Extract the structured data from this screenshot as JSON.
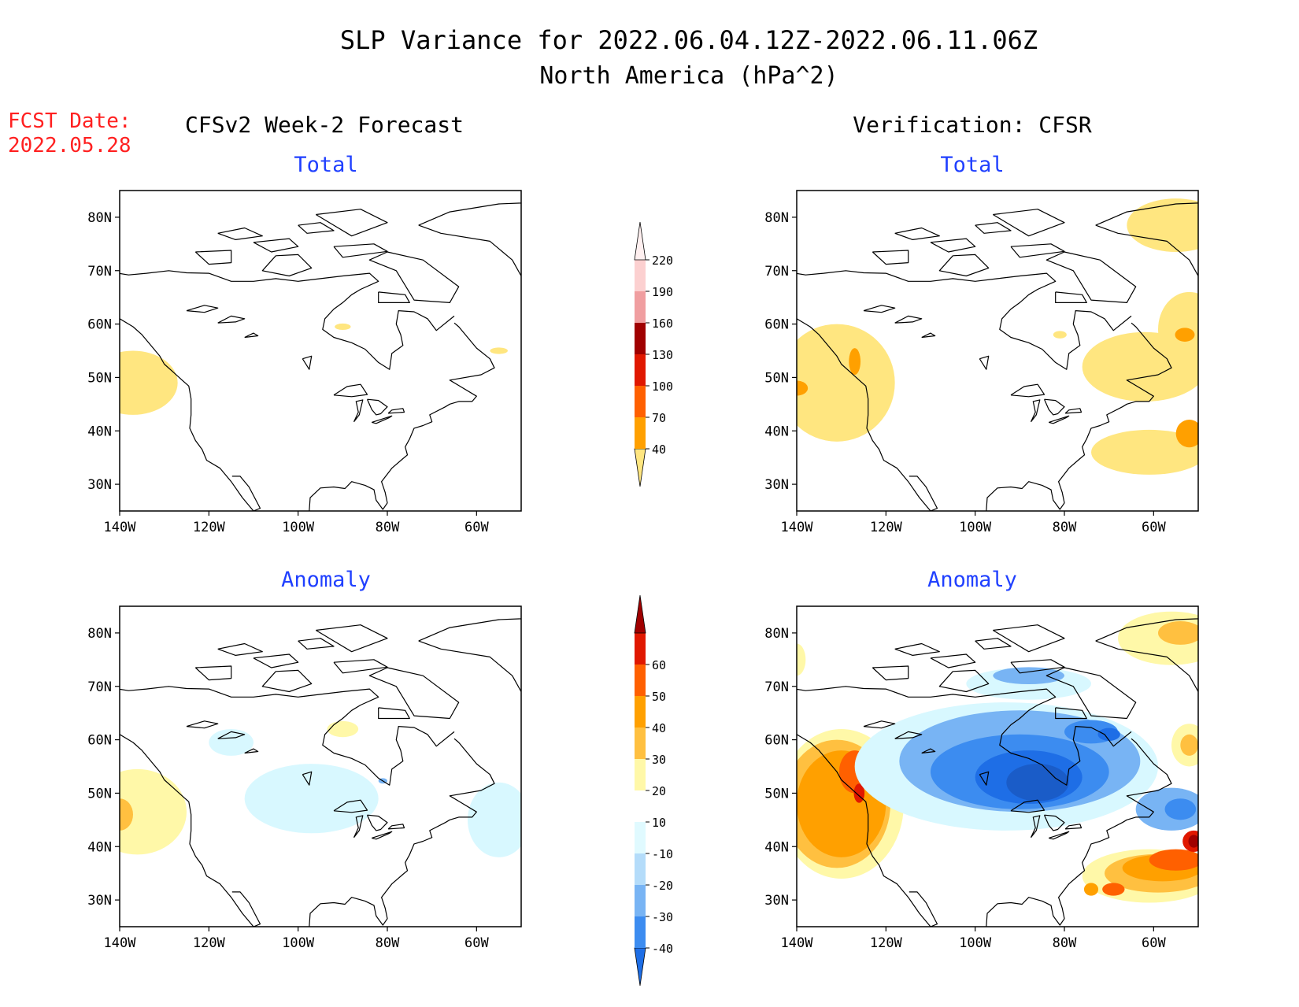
{
  "title_line1": "SLP Variance for 2022.06.04.12Z-2022.06.11.06Z",
  "title_line2": "North America (hPa^2)",
  "fcst_label": "FCST Date:",
  "fcst_date": "2022.05.28",
  "left_heading": "CFSv2 Week-2 Forecast",
  "right_heading": "Verification: CFSR",
  "colors": {
    "title": "#000000",
    "fcst": "#ff2020",
    "panel_title": "#2040ff",
    "coast": "#000000"
  },
  "chart_data": [
    {
      "type": "heatmap",
      "panel": "forecast-total",
      "title": "Total",
      "x_ticks": [
        "140W",
        "120W",
        "100W",
        "80W",
        "60W"
      ],
      "y_ticks": [
        "80N",
        "70N",
        "60N",
        "50N",
        "40N",
        "30N"
      ],
      "xlim": [
        -140,
        -50
      ],
      "ylim": [
        25,
        85
      ],
      "blobs": [
        {
          "lon": -137,
          "lat": 49,
          "rx": 10,
          "ry": 6,
          "level": 0
        },
        {
          "lon": -90,
          "lat": 59.5,
          "rx": 1.8,
          "ry": 0.6,
          "level": 0
        },
        {
          "lon": -55,
          "lat": 55,
          "rx": 2.0,
          "ry": 0.6,
          "level": 0
        }
      ]
    },
    {
      "type": "heatmap",
      "panel": "verification-total",
      "title": "Total",
      "x_ticks": [
        "140W",
        "120W",
        "100W",
        "80W",
        "60W"
      ],
      "y_ticks": [
        "80N",
        "70N",
        "60N",
        "50N",
        "40N",
        "30N"
      ],
      "xlim": [
        -140,
        -50
      ],
      "ylim": [
        25,
        85
      ],
      "blobs": [
        {
          "lon": -131,
          "lat": 49,
          "rx": 13,
          "ry": 11,
          "level": 0
        },
        {
          "lon": -140,
          "lat": 48,
          "rx": 2.5,
          "ry": 1.4,
          "level": 1
        },
        {
          "lon": -127,
          "lat": 53,
          "rx": 1.3,
          "ry": 2.5,
          "level": 1
        },
        {
          "lon": -55,
          "lat": 78.5,
          "rx": 11,
          "ry": 5,
          "level": 0
        },
        {
          "lon": -62,
          "lat": 52,
          "rx": 14,
          "ry": 6.5,
          "level": 0
        },
        {
          "lon": -52,
          "lat": 59,
          "rx": 7,
          "ry": 7,
          "level": 0
        },
        {
          "lon": -81,
          "lat": 58,
          "rx": 1.5,
          "ry": 0.7,
          "level": 0
        },
        {
          "lon": -61,
          "lat": 36,
          "rx": 13,
          "ry": 4.2,
          "level": 0
        },
        {
          "lon": -52,
          "lat": 39.5,
          "rx": 3,
          "ry": 2.6,
          "level": 1
        },
        {
          "lon": -53,
          "lat": 58,
          "rx": 2.2,
          "ry": 1.3,
          "level": 1
        }
      ]
    },
    {
      "type": "heatmap",
      "panel": "forecast-anomaly",
      "title": "Anomaly",
      "x_ticks": [
        "140W",
        "120W",
        "100W",
        "80W",
        "60W"
      ],
      "y_ticks": [
        "80N",
        "70N",
        "60N",
        "50N",
        "40N",
        "30N"
      ],
      "xlim": [
        -140,
        -50
      ],
      "ylim": [
        25,
        85
      ],
      "blobs": [
        {
          "lon": -136,
          "lat": 46.5,
          "rx": 11,
          "ry": 8,
          "level": 2
        },
        {
          "lon": -140,
          "lat": 46,
          "rx": 3,
          "ry": 3,
          "level": 3
        },
        {
          "lon": -90,
          "lat": 62,
          "rx": 3.5,
          "ry": 1.5,
          "level": 2
        },
        {
          "lon": -115,
          "lat": 59.5,
          "rx": 5,
          "ry": 2.5,
          "level": -1
        },
        {
          "lon": -97,
          "lat": 49,
          "rx": 15,
          "ry": 6.5,
          "level": -1
        },
        {
          "lon": -55,
          "lat": 45,
          "rx": 7,
          "ry": 7,
          "level": -1
        },
        {
          "lon": -81,
          "lat": 52.3,
          "rx": 1,
          "ry": 0.5,
          "level": -2
        }
      ]
    },
    {
      "type": "heatmap",
      "panel": "verification-anomaly",
      "title": "Anomaly",
      "x_ticks": [
        "140W",
        "120W",
        "100W",
        "80W",
        "60W"
      ],
      "y_ticks": [
        "80N",
        "70N",
        "60N",
        "50N",
        "40N",
        "30N"
      ],
      "xlim": [
        -140,
        -50
      ],
      "ylim": [
        25,
        85
      ],
      "blobs": [
        {
          "lon": -130,
          "lat": 48,
          "rx": 14,
          "ry": 14,
          "level": 2
        },
        {
          "lon": -131,
          "lat": 48,
          "rx": 12,
          "ry": 12,
          "level": 3
        },
        {
          "lon": -130,
          "lat": 48,
          "rx": 10,
          "ry": 10,
          "level": 4
        },
        {
          "lon": -127,
          "lat": 54,
          "rx": 3.5,
          "ry": 4,
          "level": 5
        },
        {
          "lon": -126,
          "lat": 50,
          "rx": 1.2,
          "ry": 1.8,
          "level": 6
        },
        {
          "lon": -93,
          "lat": 55,
          "rx": 34,
          "ry": 12,
          "level": -1
        },
        {
          "lon": -90,
          "lat": 56,
          "rx": 27,
          "ry": 9.5,
          "level": -2
        },
        {
          "lon": -90,
          "lat": 54,
          "rx": 20,
          "ry": 7,
          "level": -3
        },
        {
          "lon": -88,
          "lat": 53,
          "rx": 12,
          "ry": 5,
          "level": -4
        },
        {
          "lon": -86,
          "lat": 52,
          "rx": 7,
          "ry": 3.5,
          "level": -5
        },
        {
          "lon": -74,
          "lat": 61.5,
          "rx": 6,
          "ry": 2.2,
          "level": -3
        },
        {
          "lon": -70,
          "lat": 61,
          "rx": 2.5,
          "ry": 1.2,
          "level": -4
        },
        {
          "lon": -88,
          "lat": 70.5,
          "rx": 14,
          "ry": 3,
          "level": -1
        },
        {
          "lon": -88,
          "lat": 72,
          "rx": 8,
          "ry": 1.6,
          "level": -2
        },
        {
          "lon": -56,
          "lat": 47,
          "rx": 8,
          "ry": 4,
          "level": -2
        },
        {
          "lon": -54,
          "lat": 47,
          "rx": 3.5,
          "ry": 2,
          "level": -3
        },
        {
          "lon": -56,
          "lat": 79,
          "rx": 12,
          "ry": 5,
          "level": 2
        },
        {
          "lon": -54,
          "lat": 80,
          "rx": 5,
          "ry": 2.2,
          "level": 3
        },
        {
          "lon": -140,
          "lat": 75,
          "rx": 2,
          "ry": 3,
          "level": 2
        },
        {
          "lon": -52,
          "lat": 59,
          "rx": 4,
          "ry": 4,
          "level": 2
        },
        {
          "lon": -52,
          "lat": 59,
          "rx": 2,
          "ry": 2,
          "level": 3
        },
        {
          "lon": -61,
          "lat": 34.5,
          "rx": 15,
          "ry": 5,
          "level": 2
        },
        {
          "lon": -59,
          "lat": 35,
          "rx": 12,
          "ry": 3.6,
          "level": 3
        },
        {
          "lon": -58,
          "lat": 36,
          "rx": 9,
          "ry": 2.5,
          "level": 4
        },
        {
          "lon": -55,
          "lat": 37.5,
          "rx": 6,
          "ry": 2,
          "level": 5
        },
        {
          "lon": -69,
          "lat": 32,
          "rx": 2.5,
          "ry": 1.2,
          "level": 5
        },
        {
          "lon": -51,
          "lat": 41,
          "rx": 2.5,
          "ry": 2,
          "level": 6
        },
        {
          "lon": -51,
          "lat": 41,
          "rx": 1.2,
          "ry": 1.2,
          "level": 7
        },
        {
          "lon": -74,
          "lat": 32,
          "rx": 1.6,
          "ry": 1.2,
          "level": 4
        }
      ]
    }
  ],
  "colorbars": {
    "total": {
      "labels": [
        "40",
        "70",
        "100",
        "130",
        "160",
        "190",
        "220"
      ],
      "colors": [
        "#ffe680",
        "#ffa000",
        "#ff6000",
        "#e01800",
        "#a00000",
        "#f09ea0",
        "#fcd0d0",
        "#fff0f0"
      ]
    },
    "anomaly": {
      "labels": [
        "-40",
        "-30",
        "-20",
        "-10",
        "10",
        "20",
        "30",
        "40",
        "50",
        "60"
      ],
      "colors": [
        "#1e6ee6",
        "#3c8cf0",
        "#78b4f4",
        "#b4dcfa",
        "#e0faff",
        "#ffffff",
        "#fff8a8",
        "#ffc040",
        "#ffa000",
        "#ff6000",
        "#e01800",
        "#a00000"
      ]
    }
  }
}
